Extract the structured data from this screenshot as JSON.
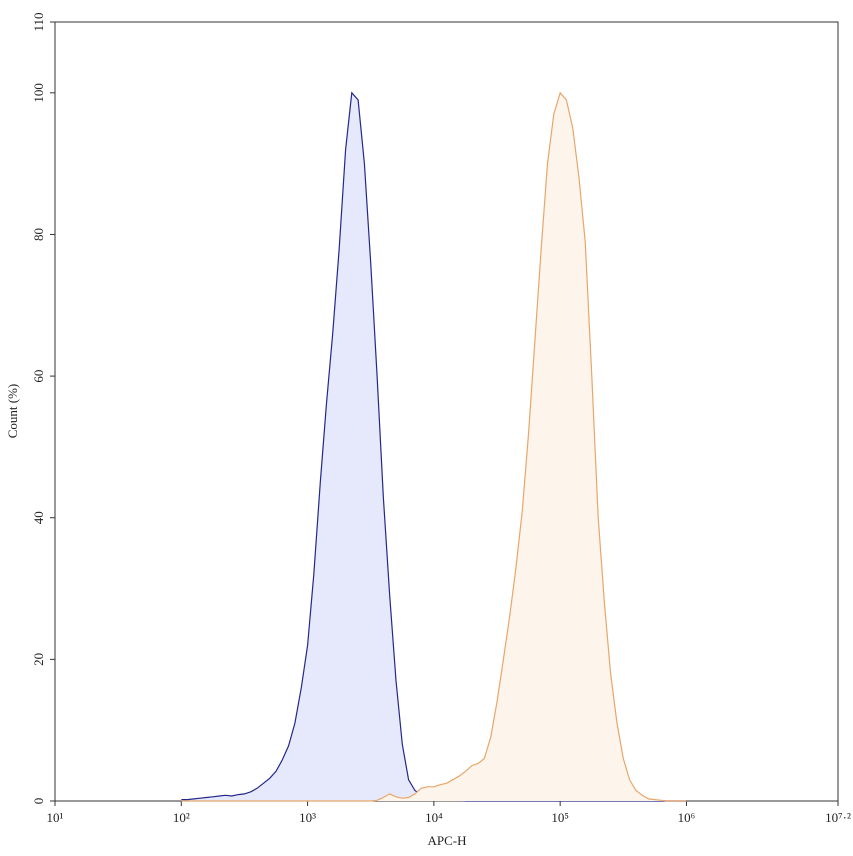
{
  "chart_data": {
    "type": "histogram-overlay",
    "xlabel": "APC-H",
    "ylabel": "Count (%)",
    "xscale": "log",
    "xlim": [
      10,
      15848932
    ],
    "ylim": [
      0,
      110
    ],
    "xticks": [
      {
        "value": 10,
        "label": "10¹"
      },
      {
        "value": 100,
        "label": "10²"
      },
      {
        "value": 1000,
        "label": "10³"
      },
      {
        "value": 10000,
        "label": "10⁴"
      },
      {
        "value": 100000,
        "label": "10⁵"
      },
      {
        "value": 1000000,
        "label": "10⁶"
      },
      {
        "value": 15848932,
        "label": "10⁷·²"
      }
    ],
    "yticks": [
      0,
      20,
      40,
      60,
      80,
      100,
      110
    ],
    "grid": false,
    "x": [
      100,
      112,
      126,
      141,
      158,
      178,
      200,
      224,
      251,
      282,
      316,
      355,
      398,
      447,
      501,
      562,
      631,
      708,
      794,
      891,
      1000,
      1120,
      1260,
      1410,
      1580,
      1780,
      2000,
      2240,
      2510,
      2820,
      3160,
      3550,
      3980,
      4470,
      5010,
      5620,
      6310,
      7080,
      7940,
      8910,
      10000,
      11200,
      12600,
      14100,
      15800,
      17800,
      20000,
      22400,
      25100,
      28200,
      31600,
      35500,
      39800,
      44700,
      50100,
      56200,
      63100,
      70800,
      79400,
      89100,
      100000,
      112000,
      126000,
      141000,
      158000,
      178000,
      200000,
      224000,
      251000,
      282000,
      316000,
      355000,
      398000,
      447000,
      501000,
      562000,
      631000,
      708000,
      794000,
      891000,
      1000000
    ],
    "series": [
      {
        "color": "#23288a",
        "fill_color": "#e6e8fb",
        "values": [
          0.2,
          0.2,
          0.3,
          0.4,
          0.5,
          0.6,
          0.7,
          0.8,
          0.7,
          0.9,
          1.0,
          1.3,
          1.8,
          2.5,
          3.2,
          4.2,
          5.8,
          7.8,
          11,
          16,
          22,
          32,
          45,
          56,
          66,
          78,
          92,
          100,
          99,
          90,
          76,
          60,
          43,
          29,
          17,
          8,
          3,
          1.5,
          0.8,
          0.5,
          0.4,
          0.3,
          0.2,
          0.2,
          0.1,
          0,
          0,
          0,
          0,
          0,
          0,
          0,
          0,
          0,
          0,
          0,
          0,
          0,
          0,
          0,
          0,
          0,
          0,
          0,
          0,
          0,
          0,
          0,
          0,
          0,
          0,
          0,
          0,
          0,
          0,
          0,
          0,
          0,
          0,
          0,
          0
        ]
      },
      {
        "color": "#e8a66a",
        "fill_color": "#fdf4ec",
        "values": [
          0,
          0,
          0,
          0,
          0,
          0,
          0,
          0,
          0,
          0,
          0,
          0,
          0,
          0,
          0,
          0,
          0,
          0,
          0,
          0,
          0,
          0,
          0,
          0,
          0,
          0,
          0,
          0,
          0,
          0,
          0,
          0.1,
          0.5,
          1.0,
          0.6,
          0.4,
          0.5,
          1.0,
          1.8,
          2.0,
          2.0,
          2.3,
          2.5,
          3.0,
          3.5,
          4.2,
          5.0,
          5.3,
          6.0,
          9,
          14,
          20,
          26,
          33,
          41,
          52,
          65,
          78,
          90,
          97,
          100,
          99,
          95,
          88,
          79,
          60,
          40,
          28,
          18,
          11,
          6,
          3,
          1.5,
          0.8,
          0.3,
          0.2,
          0.1,
          0,
          0,
          0,
          0
        ]
      }
    ]
  }
}
